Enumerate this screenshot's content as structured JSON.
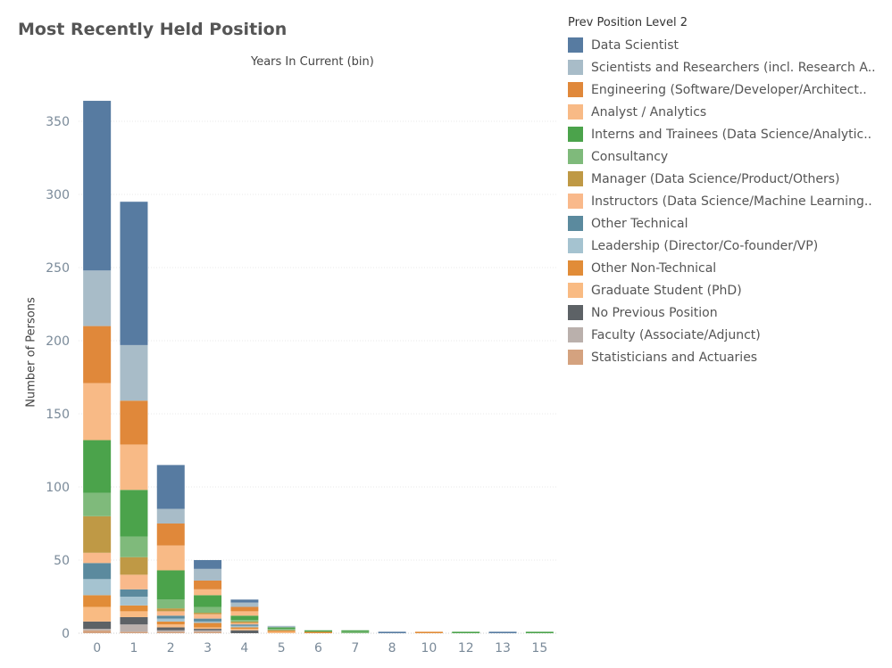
{
  "chart_data": {
    "type": "bar",
    "stacked": true,
    "title": "Most Recently Held Position",
    "column_header": "Years In Current (bin)",
    "xlabel": "",
    "ylabel": "Number of Persons",
    "ylim": [
      0,
      375
    ],
    "yticks": [
      0,
      50,
      100,
      150,
      200,
      250,
      300,
      350
    ],
    "grid": true,
    "legend_title": "Prev Position Level 2",
    "legend_position": "right",
    "categories": [
      "0",
      "1",
      "2",
      "3",
      "4",
      "5",
      "6",
      "7",
      "8",
      "10",
      "12",
      "13",
      "15"
    ],
    "series": [
      {
        "name": "Statisticians and Actuaries",
        "color": "#d4a27f",
        "values": [
          2,
          1,
          1,
          1,
          0,
          0,
          0,
          0,
          0,
          0,
          0,
          0,
          0
        ]
      },
      {
        "name": "Faculty (Associate/Adjunct)",
        "color": "#bab0ac",
        "values": [
          1,
          5,
          1,
          1,
          0,
          0,
          0,
          0,
          0,
          0,
          0,
          0,
          0
        ]
      },
      {
        "name": "No Previous Position",
        "color": "#5d6266",
        "values": [
          5,
          5,
          2,
          1,
          2,
          0,
          0,
          0,
          0,
          0,
          0,
          0,
          0
        ]
      },
      {
        "name": "Graduate Student (PhD)",
        "color": "#f9bb83",
        "values": [
          10,
          4,
          2,
          1,
          1,
          1,
          0,
          0,
          0,
          0,
          0,
          0,
          0
        ]
      },
      {
        "name": "Other Non-Technical",
        "color": "#e18c38",
        "values": [
          8,
          4,
          2,
          3,
          1,
          1,
          1,
          0,
          0,
          1,
          0,
          0,
          0
        ]
      },
      {
        "name": "Leadership (Director/Co-founder/VP)",
        "color": "#a5c3d0",
        "values": [
          11,
          6,
          2,
          1,
          1,
          0,
          0,
          0,
          0,
          0,
          0,
          0,
          0
        ]
      },
      {
        "name": "Other Technical",
        "color": "#5b8a9e",
        "values": [
          11,
          5,
          2,
          2,
          1,
          0,
          0,
          0,
          0,
          0,
          0,
          0,
          0
        ]
      },
      {
        "name": "Instructors (Data Science/Machine Learning..",
        "color": "#f9b98b",
        "values": [
          7,
          10,
          3,
          3,
          1,
          0,
          0,
          0,
          0,
          0,
          0,
          0,
          0
        ]
      },
      {
        "name": "Manager (Data Science/Product/Others)",
        "color": "#bf9945",
        "values": [
          25,
          12,
          2,
          1,
          1,
          0,
          0,
          0,
          0,
          0,
          0,
          0,
          0
        ]
      },
      {
        "name": "Consultancy",
        "color": "#7fba7b",
        "values": [
          16,
          14,
          6,
          4,
          1,
          1,
          0,
          1,
          0,
          0,
          0,
          0,
          0
        ]
      },
      {
        "name": "Interns and Trainees (Data Science/Analytic..",
        "color": "#4ba34b",
        "values": [
          36,
          32,
          20,
          8,
          3,
          1,
          1,
          1,
          0,
          0,
          1,
          0,
          1
        ]
      },
      {
        "name": "Analyst / Analytics",
        "color": "#f8ba86",
        "values": [
          39,
          31,
          17,
          4,
          3,
          0,
          0,
          0,
          0,
          0,
          0,
          0,
          0
        ]
      },
      {
        "name": "Engineering (Software/Developer/Architect..",
        "color": "#e0883a",
        "values": [
          39,
          30,
          15,
          6,
          3,
          0,
          0,
          0,
          0,
          0,
          0,
          0,
          0
        ]
      },
      {
        "name": "Scientists and Researchers (incl. Research A..",
        "color": "#a8bcc8",
        "values": [
          38,
          38,
          10,
          8,
          3,
          1,
          0,
          0,
          0,
          0,
          0,
          0,
          0
        ]
      },
      {
        "name": "Data Scientist",
        "color": "#577ba1",
        "values": [
          116,
          98,
          30,
          6,
          2,
          0,
          0,
          0,
          1,
          0,
          0,
          1,
          0
        ]
      }
    ],
    "legend_order": [
      "Data Scientist",
      "Scientists and Researchers (incl. Research A..",
      "Engineering (Software/Developer/Architect..",
      "Analyst / Analytics",
      "Interns and Trainees (Data Science/Analytic..",
      "Consultancy",
      "Manager (Data Science/Product/Others)",
      "Instructors (Data Science/Machine Learning..",
      "Other Technical",
      "Leadership (Director/Co-founder/VP)",
      "Other Non-Technical",
      "Graduate Student (PhD)",
      "No Previous Position",
      "Faculty (Associate/Adjunct)",
      "Statisticians and Actuaries"
    ]
  }
}
